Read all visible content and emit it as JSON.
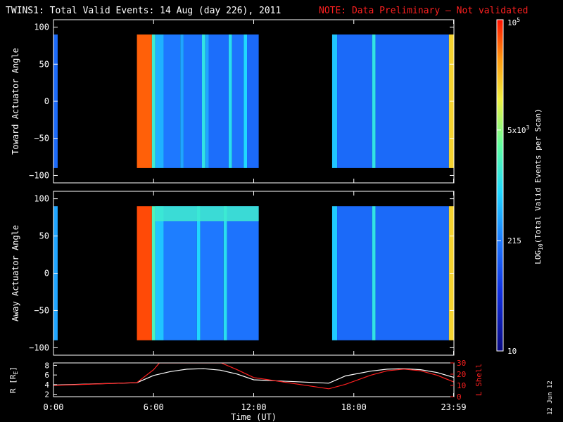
{
  "header": {
    "title": "TWINS1: Total Valid Events: 14 Aug (day 226), 2011",
    "note": "NOTE: Data Preliminary — Not validated",
    "note_color": "#ff2020"
  },
  "side_date": "12 Jun 12",
  "chart_data": [
    {
      "type": "heatmap",
      "ylabel": "Toward Actuator Angle",
      "ylim": [
        -110,
        110
      ],
      "yticks": [
        "100",
        "50",
        "0",
        "−50",
        "−100"
      ],
      "ytick_values": [
        100,
        50,
        0,
        -50,
        -100
      ],
      "xlim_hours": [
        0,
        24
      ],
      "angle_range": [
        -90,
        90
      ],
      "gaps_hours": [
        [
          0.25,
          5.0
        ],
        [
          12.3,
          16.7
        ]
      ],
      "columns": [
        {
          "t0": 0.0,
          "t1": 0.25,
          "level": 0.3
        },
        {
          "t0": 5.0,
          "t1": 5.9,
          "level": 0.93
        },
        {
          "t0": 5.9,
          "t1": 6.1,
          "level": 0.55
        },
        {
          "t0": 6.1,
          "t1": 6.6,
          "level": 0.42
        },
        {
          "t0": 6.6,
          "t1": 7.6,
          "level": 0.33
        },
        {
          "t0": 7.6,
          "t1": 7.8,
          "level": 0.4
        },
        {
          "t0": 7.8,
          "t1": 8.9,
          "level": 0.32
        },
        {
          "t0": 8.9,
          "t1": 9.1,
          "level": 0.52
        },
        {
          "t0": 9.1,
          "t1": 9.3,
          "level": 0.4
        },
        {
          "t0": 9.3,
          "t1": 10.5,
          "level": 0.31
        },
        {
          "t0": 10.5,
          "t1": 10.7,
          "level": 0.5
        },
        {
          "t0": 10.7,
          "t1": 11.4,
          "level": 0.32
        },
        {
          "t0": 11.4,
          "t1": 11.6,
          "level": 0.48
        },
        {
          "t0": 11.6,
          "t1": 12.3,
          "level": 0.3
        },
        {
          "t0": 16.7,
          "t1": 17.0,
          "level": 0.45
        },
        {
          "t0": 17.0,
          "t1": 19.1,
          "level": 0.3
        },
        {
          "t0": 19.1,
          "t1": 19.3,
          "level": 0.52
        },
        {
          "t0": 19.3,
          "t1": 23.7,
          "level": 0.3
        },
        {
          "t0": 23.7,
          "t1": 24.0,
          "level": 0.8
        }
      ]
    },
    {
      "type": "heatmap",
      "ylabel": "Away Actuator Angle",
      "ylim": [
        -110,
        110
      ],
      "yticks": [
        "100",
        "50",
        "0",
        "−50",
        "−100"
      ],
      "ytick_values": [
        100,
        50,
        0,
        -50,
        -100
      ],
      "xlim_hours": [
        0,
        24
      ],
      "angle_range": [
        -90,
        90
      ],
      "gaps_hours": [
        [
          0.25,
          5.0
        ],
        [
          12.3,
          16.7
        ]
      ],
      "columns": [
        {
          "t0": 0.0,
          "t1": 0.25,
          "level": 0.4
        },
        {
          "t0": 5.0,
          "t1": 5.9,
          "level": 0.95
        },
        {
          "t0": 5.9,
          "t1": 6.1,
          "level": 0.58
        },
        {
          "t0": 6.1,
          "t1": 6.6,
          "level": 0.45
        },
        {
          "t0": 6.6,
          "t1": 8.6,
          "level": 0.34
        },
        {
          "t0": 8.6,
          "t1": 8.8,
          "level": 0.48
        },
        {
          "t0": 8.8,
          "t1": 10.2,
          "level": 0.33
        },
        {
          "t0": 10.2,
          "t1": 10.4,
          "level": 0.5
        },
        {
          "t0": 10.4,
          "t1": 12.3,
          "level": 0.32
        },
        {
          "t0": 16.7,
          "t1": 17.0,
          "level": 0.46
        },
        {
          "t0": 17.0,
          "t1": 19.1,
          "level": 0.3
        },
        {
          "t0": 19.1,
          "t1": 19.3,
          "level": 0.52
        },
        {
          "t0": 19.3,
          "t1": 23.7,
          "level": 0.3
        },
        {
          "t0": 23.7,
          "t1": 24.0,
          "level": 0.8
        }
      ],
      "band": {
        "t0": 6.1,
        "t1": 12.3,
        "a0": 70,
        "a1": 90,
        "level": 0.55
      }
    },
    {
      "type": "line",
      "ylabel_left": "R [R",
      "ylabel_left_sub": "E",
      "ylabel_left_tail": "]",
      "ylabel_right": "L Shell",
      "yticks_left": [
        "8",
        "6",
        "4",
        "2"
      ],
      "ytick_values_left": [
        8,
        6,
        4,
        2
      ],
      "ylim_left": [
        1.5,
        8.5
      ],
      "yticks_right": [
        "30",
        "20",
        "10",
        "0"
      ],
      "ytick_values_right": [
        30,
        20,
        10,
        0
      ],
      "ylim_right": [
        0,
        30
      ],
      "xlabel": "Time (UT)",
      "xtick_labels": [
        "0:00",
        "6:00",
        "12:00",
        "18:00",
        "23:59"
      ],
      "xtick_values": [
        0,
        6,
        12,
        18,
        23.98
      ],
      "series": [
        {
          "color": "#ffffff",
          "x": [
            0,
            5,
            6,
            7,
            8,
            9,
            10,
            11,
            12,
            16.5,
            17.5,
            19,
            20,
            21,
            22,
            23,
            24
          ],
          "y": [
            3.9,
            4.4,
            5.9,
            6.7,
            7.2,
            7.3,
            7.0,
            6.2,
            5.0,
            4.3,
            5.8,
            6.8,
            7.2,
            7.3,
            7.1,
            6.5,
            5.5
          ]
        },
        {
          "color": "#ff2020",
          "x": [
            0,
            5,
            6,
            6.35,
            10.05,
            11,
            12,
            16.5,
            17.5,
            19,
            20,
            21,
            22,
            23,
            24
          ],
          "y": [
            10,
            12.5,
            24,
            30,
            30,
            24,
            17,
            7,
            11,
            19,
            23,
            24.5,
            23,
            19,
            13
          ]
        }
      ]
    }
  ],
  "colorbar": {
    "label": "LOG",
    "label_sub": "10",
    "label_tail": "(Total Valid Events per Scan)",
    "ticks": [
      {
        "label": "10",
        "frac": 0.0
      },
      {
        "label": "215",
        "frac": 0.333
      },
      {
        "label": "5x10",
        "sup": "3",
        "frac": 0.667
      },
      {
        "label": "10",
        "sup": "5",
        "frac": 1.0
      }
    ]
  }
}
